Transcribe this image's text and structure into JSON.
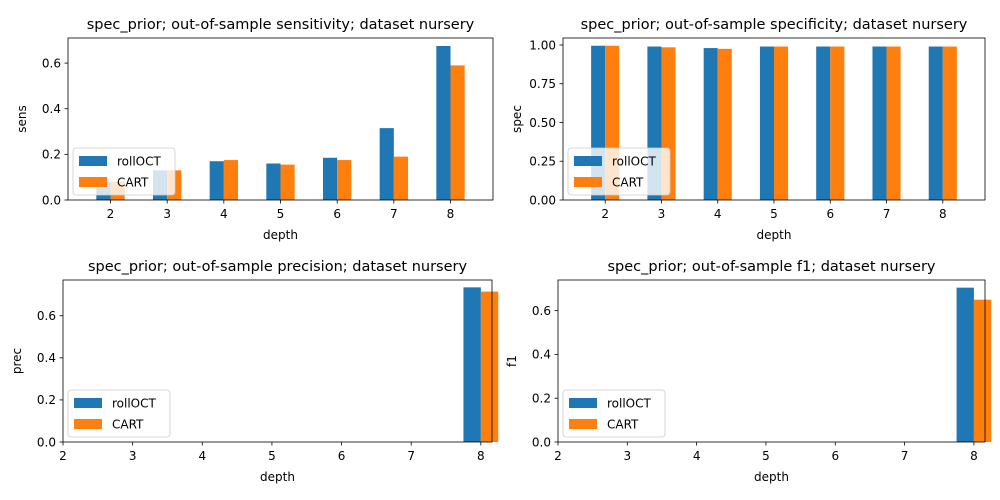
{
  "colors": {
    "rollOCT": "#1f77b4",
    "CART": "#ff7f0e",
    "axis": "#000000",
    "legend_border": "#cccccc"
  },
  "chart_data": [
    {
      "type": "bar",
      "title": "spec_prior; out-of-sample sensitivity; dataset nursery",
      "xlabel": "depth",
      "ylabel": "sens",
      "categories": [
        "2",
        "3",
        "4",
        "5",
        "6",
        "7",
        "8"
      ],
      "series": [
        {
          "name": "rollOCT",
          "values": [
            0.08,
            0.13,
            0.17,
            0.16,
            0.185,
            0.315,
            0.675
          ]
        },
        {
          "name": "CART",
          "values": [
            0.08,
            0.13,
            0.175,
            0.155,
            0.175,
            0.19,
            0.59
          ]
        }
      ],
      "ylim": [
        0,
        0.71
      ],
      "yticks": [
        "0.0",
        "0.2",
        "0.4",
        "0.6"
      ],
      "legend": "lower-left"
    },
    {
      "type": "bar",
      "title": "spec_prior; out-of-sample specificity; dataset nursery",
      "xlabel": "depth",
      "ylabel": "spec",
      "categories": [
        "2",
        "3",
        "4",
        "5",
        "6",
        "7",
        "8"
      ],
      "series": [
        {
          "name": "rollOCT",
          "values": [
            0.995,
            0.99,
            0.98,
            0.99,
            0.99,
            0.99,
            0.99
          ]
        },
        {
          "name": "CART",
          "values": [
            0.995,
            0.985,
            0.975,
            0.99,
            0.99,
            0.99,
            0.99
          ]
        }
      ],
      "ylim": [
        0,
        1.045
      ],
      "yticks": [
        "0.00",
        "0.25",
        "0.50",
        "0.75",
        "1.00"
      ],
      "legend": "lower-left"
    },
    {
      "type": "bar",
      "title": "spec_prior; out-of-sample precision; dataset nursery",
      "xlabel": "depth",
      "ylabel": "prec",
      "categories": [
        "2",
        "3",
        "4",
        "5",
        "6",
        "7",
        "8"
      ],
      "series": [
        {
          "name": "rollOCT",
          "values": [
            null,
            null,
            null,
            null,
            null,
            null,
            0.735
          ]
        },
        {
          "name": "CART",
          "values": [
            null,
            null,
            null,
            null,
            null,
            null,
            0.715
          ]
        }
      ],
      "ylim": [
        0,
        0.77
      ],
      "yticks": [
        "0.0",
        "0.2",
        "0.4",
        "0.6"
      ],
      "legend": "lower-left"
    },
    {
      "type": "bar",
      "title": "spec_prior; out-of-sample f1; dataset nursery",
      "xlabel": "depth",
      "ylabel": "f1",
      "categories": [
        "2",
        "3",
        "4",
        "5",
        "6",
        "7",
        "8"
      ],
      "series": [
        {
          "name": "rollOCT",
          "values": [
            null,
            null,
            null,
            null,
            null,
            null,
            0.705
          ]
        },
        {
          "name": "CART",
          "values": [
            null,
            null,
            null,
            null,
            null,
            null,
            0.65
          ]
        }
      ],
      "ylim": [
        0,
        0.74
      ],
      "yticks": [
        "0.0",
        "0.2",
        "0.4",
        "0.6"
      ],
      "legend": "lower-left"
    }
  ]
}
